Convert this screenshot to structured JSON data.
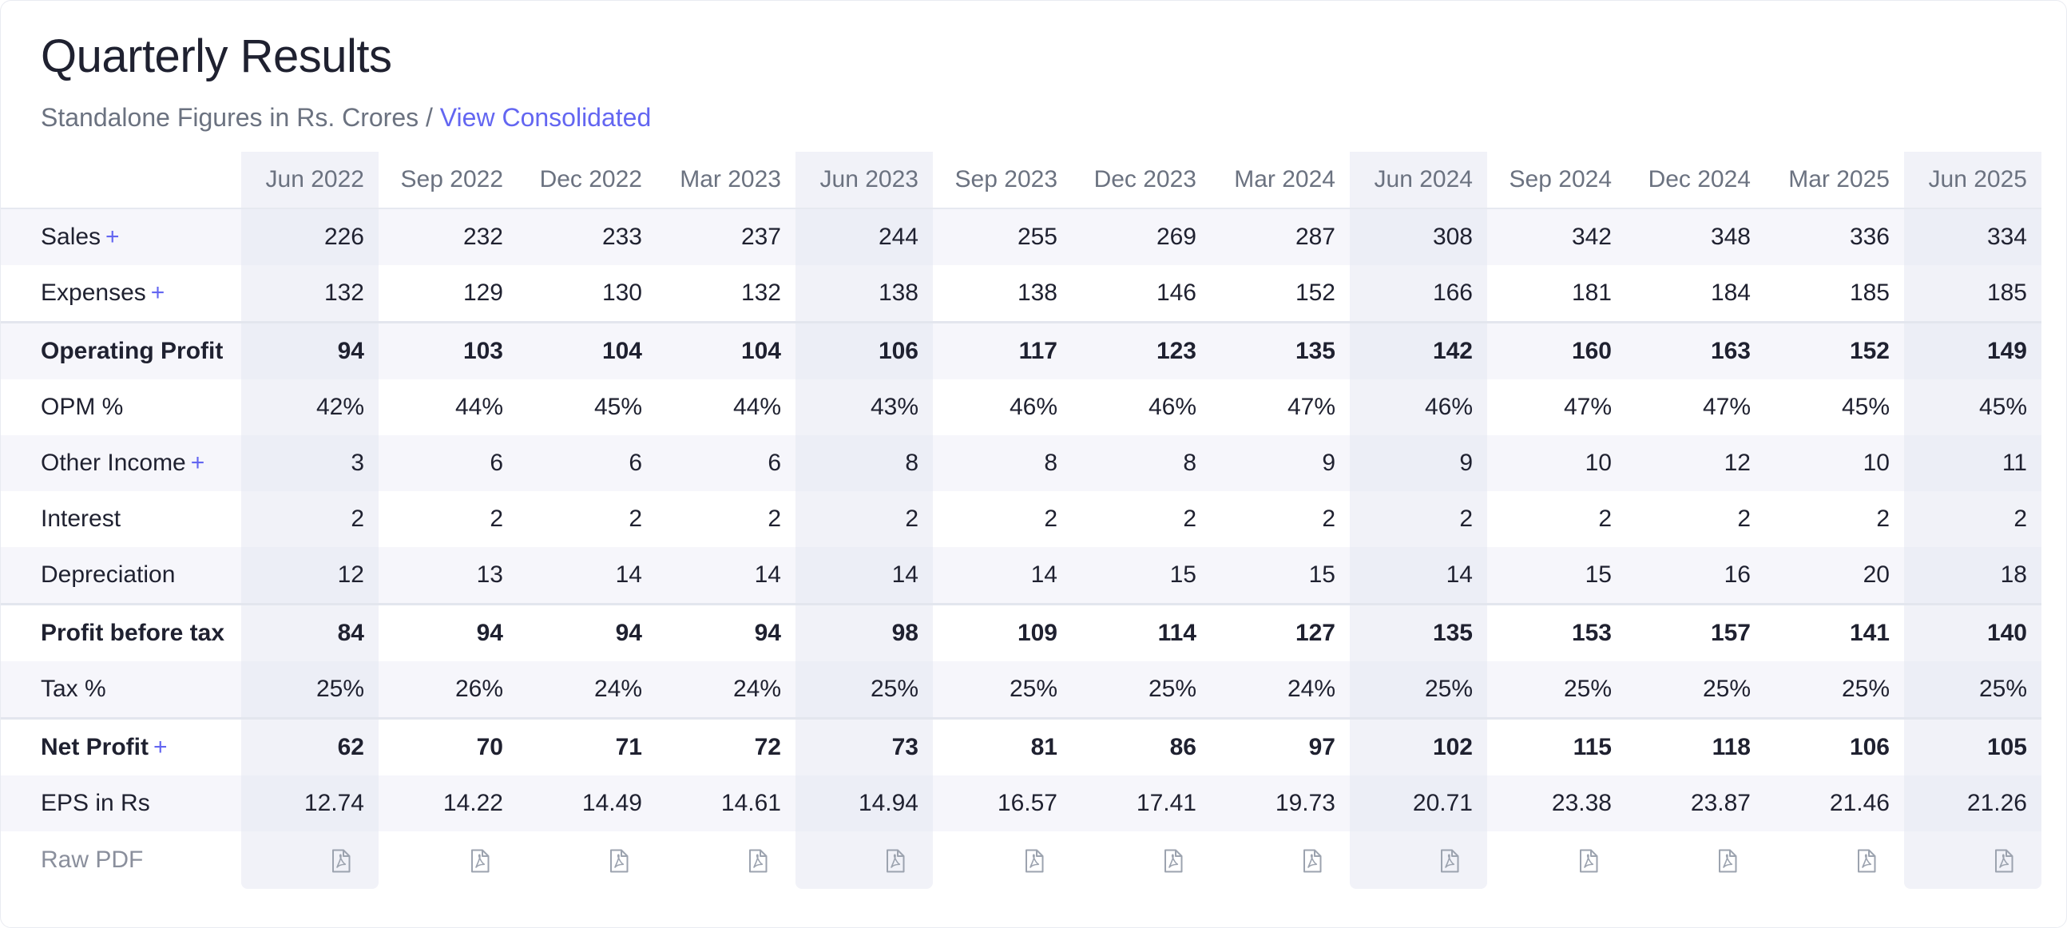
{
  "title": "Quarterly Results",
  "subtitle": {
    "text": "Standalone Figures in Rs. Crores / ",
    "link": "View Consolidated"
  },
  "quarters": [
    "Jun 2022",
    "Sep 2022",
    "Dec 2022",
    "Mar 2023",
    "Jun 2023",
    "Sep 2023",
    "Dec 2023",
    "Mar 2024",
    "Jun 2024",
    "Sep 2024",
    "Dec 2024",
    "Mar 2025",
    "Jun 2025"
  ],
  "highlighted_quarters": [
    "Jun 2022",
    "Jun 2023",
    "Jun 2024",
    "Jun 2025"
  ],
  "rows": [
    {
      "label": "Sales",
      "expandable": true,
      "bold": false,
      "values": [
        "226",
        "232",
        "233",
        "237",
        "244",
        "255",
        "269",
        "287",
        "308",
        "342",
        "348",
        "336",
        "334"
      ]
    },
    {
      "label": "Expenses",
      "expandable": true,
      "bold": false,
      "values": [
        "132",
        "129",
        "130",
        "132",
        "138",
        "138",
        "146",
        "152",
        "166",
        "181",
        "184",
        "185",
        "185"
      ]
    },
    {
      "label": "Operating Profit",
      "expandable": false,
      "bold": true,
      "values": [
        "94",
        "103",
        "104",
        "104",
        "106",
        "117",
        "123",
        "135",
        "142",
        "160",
        "163",
        "152",
        "149"
      ]
    },
    {
      "label": "OPM %",
      "expandable": false,
      "bold": false,
      "values": [
        "42%",
        "44%",
        "45%",
        "44%",
        "43%",
        "46%",
        "46%",
        "47%",
        "46%",
        "47%",
        "47%",
        "45%",
        "45%"
      ]
    },
    {
      "label": "Other Income",
      "expandable": true,
      "bold": false,
      "values": [
        "3",
        "6",
        "6",
        "6",
        "8",
        "8",
        "8",
        "9",
        "9",
        "10",
        "12",
        "10",
        "11"
      ]
    },
    {
      "label": "Interest",
      "expandable": false,
      "bold": false,
      "values": [
        "2",
        "2",
        "2",
        "2",
        "2",
        "2",
        "2",
        "2",
        "2",
        "2",
        "2",
        "2",
        "2"
      ]
    },
    {
      "label": "Depreciation",
      "expandable": false,
      "bold": false,
      "values": [
        "12",
        "13",
        "14",
        "14",
        "14",
        "14",
        "15",
        "15",
        "14",
        "15",
        "16",
        "20",
        "18"
      ]
    },
    {
      "label": "Profit before tax",
      "expandable": false,
      "bold": true,
      "values": [
        "84",
        "94",
        "94",
        "94",
        "98",
        "109",
        "114",
        "127",
        "135",
        "153",
        "157",
        "141",
        "140"
      ]
    },
    {
      "label": "Tax %",
      "expandable": false,
      "bold": false,
      "values": [
        "25%",
        "26%",
        "24%",
        "24%",
        "25%",
        "25%",
        "25%",
        "24%",
        "25%",
        "25%",
        "25%",
        "25%",
        "25%"
      ]
    },
    {
      "label": "Net Profit",
      "expandable": true,
      "bold": true,
      "values": [
        "62",
        "70",
        "71",
        "72",
        "73",
        "81",
        "86",
        "97",
        "102",
        "115",
        "118",
        "106",
        "105"
      ]
    },
    {
      "label": "EPS in Rs",
      "expandable": false,
      "bold": false,
      "values": [
        "12.74",
        "14.22",
        "14.49",
        "14.61",
        "14.94",
        "16.57",
        "17.41",
        "19.73",
        "20.71",
        "23.38",
        "23.87",
        "21.46",
        "21.26"
      ]
    }
  ],
  "expand_symbol": "+",
  "raw_pdf_label": "Raw PDF",
  "pdf_icon": "pdf-document-icon",
  "colors": {
    "accent": "#6366f1",
    "stripe": "#f6f6fb",
    "highlight_column": "#f1f2f8",
    "muted_text": "#6b7280"
  }
}
